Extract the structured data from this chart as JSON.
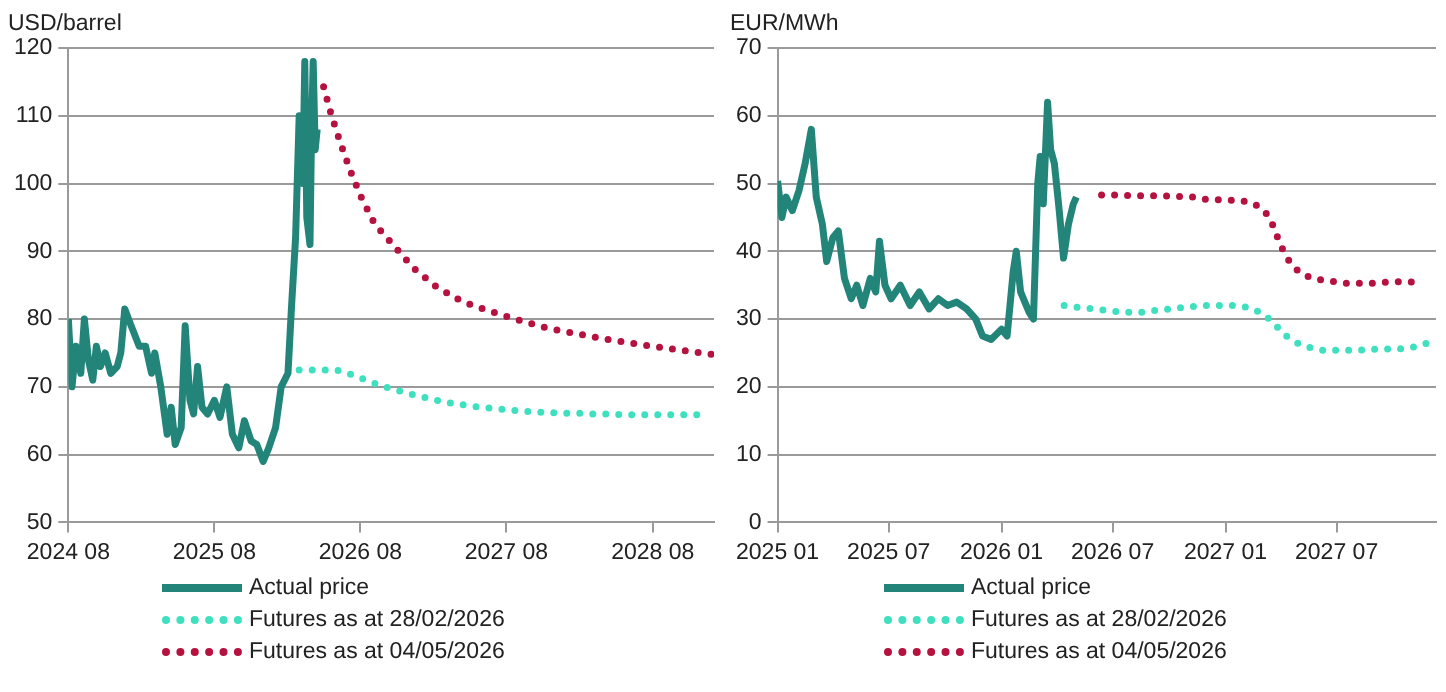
{
  "chart_data": [
    {
      "type": "line",
      "ylabel": "USD/barrel",
      "xlim": [
        "2024-08-01",
        "2029-01-01"
      ],
      "xticks": [
        {
          "value": "2024-08",
          "label": "2024 08"
        },
        {
          "value": "2025-08",
          "label": "2025 08"
        },
        {
          "value": "2026-08",
          "label": "2026 08"
        },
        {
          "value": "2027-08",
          "label": "2027 08"
        },
        {
          "value": "2028-08",
          "label": "2028 08"
        }
      ],
      "ylim": [
        50,
        120
      ],
      "yticks": [
        50,
        60,
        70,
        80,
        90,
        100,
        110,
        120
      ],
      "grid": "y",
      "legend": "bottom",
      "series": [
        {
          "name": "Actual price",
          "color": "#23857a",
          "line_style": "solid",
          "x": [
            "2024-08-01",
            "2024-08-10",
            "2024-08-20",
            "2024-09-01",
            "2024-09-10",
            "2024-09-20",
            "2024-10-01",
            "2024-10-10",
            "2024-10-20",
            "2024-11-01",
            "2024-11-15",
            "2024-12-01",
            "2024-12-10",
            "2024-12-20",
            "2025-01-05",
            "2025-01-25",
            "2025-02-10",
            "2025-02-25",
            "2025-03-05",
            "2025-03-20",
            "2025-04-05",
            "2025-04-15",
            "2025-04-25",
            "2025-05-10",
            "2025-05-20",
            "2025-06-01",
            "2025-06-10",
            "2025-06-20",
            "2025-07-01",
            "2025-07-15",
            "2025-08-01",
            "2025-08-15",
            "2025-09-01",
            "2025-09-15",
            "2025-10-01",
            "2025-10-15",
            "2025-11-01",
            "2025-11-15",
            "2025-12-01",
            "2025-12-15",
            "2026-01-01",
            "2026-01-15",
            "2026-02-01",
            "2026-02-10",
            "2026-02-20",
            "2026-03-01",
            "2026-03-10",
            "2026-03-15",
            "2026-03-20",
            "2026-03-28",
            "2026-04-01",
            "2026-04-05",
            "2026-04-10",
            "2026-04-15"
          ],
          "values": [
            80,
            70,
            76,
            72,
            80,
            74,
            71,
            76,
            73,
            75,
            72,
            73,
            75,
            81.5,
            79,
            76,
            76,
            72,
            75,
            70,
            63,
            67,
            61.5,
            64,
            79,
            68,
            66,
            73,
            67,
            66,
            68,
            65.5,
            70,
            63,
            61,
            65,
            62,
            61.5,
            59,
            61,
            64,
            70,
            72,
            82,
            92,
            110,
            100,
            118,
            95,
            91,
            108,
            118,
            105,
            108
          ]
        },
        {
          "name": "Futures as at 28/02/2026",
          "color": "#3fe0bf",
          "line_style": "dotted",
          "x": [
            "2026-03-01",
            "2026-04-15",
            "2026-06-01",
            "2026-07-10",
            "2026-08-15",
            "2026-09-20",
            "2026-10-25",
            "2026-12-01",
            "2027-01-05",
            "2027-02-10",
            "2027-03-15",
            "2027-04-20",
            "2027-05-25",
            "2027-07-01",
            "2027-08-05",
            "2027-09-10",
            "2027-10-15",
            "2027-11-20",
            "2027-12-25",
            "2028-02-01",
            "2028-03-05",
            "2028-04-10",
            "2028-05-15",
            "2028-06-20",
            "2028-07-25",
            "2028-09-01",
            "2028-10-05",
            "2028-11-10",
            "2028-12-15"
          ],
          "values": [
            72.5,
            72.5,
            72.5,
            71.8,
            71,
            70.2,
            69.6,
            69,
            68.5,
            68,
            67.6,
            67.3,
            67,
            66.8,
            66.6,
            66.4,
            66.3,
            66.2,
            66.1,
            66.1,
            66,
            66,
            65.9,
            65.9,
            65.9,
            65.9,
            65.9,
            65.9,
            65.9
          ]
        },
        {
          "name": "Futures as at 04/05/2026",
          "color": "#b5123f",
          "line_style": "dotted",
          "x": [
            "2026-05-01",
            "2026-05-21",
            "2026-06-12",
            "2026-07-06",
            "2026-08-03",
            "2026-09-06",
            "2026-10-24",
            "2026-12-12",
            "2027-02-06",
            "2027-04-12",
            "2027-06-24",
            "2027-09-03",
            "2027-11-15",
            "2028-01-27",
            "2028-04-09",
            "2028-06-24",
            "2028-09-06",
            "2028-11-18",
            "2028-12-27"
          ],
          "values": [
            114.3,
            110,
            106,
            102,
            98,
            94,
            90.8,
            87.5,
            84.8,
            82.6,
            81.1,
            79.8,
            78.6,
            77.8,
            77,
            76.3,
            75.7,
            75.1,
            74.8
          ]
        }
      ]
    },
    {
      "type": "line",
      "ylabel": "EUR/MWh",
      "xlim": [
        "2025-01-01",
        "2027-12-10"
      ],
      "xticks": [
        {
          "value": "2025-01",
          "label": "2025 01"
        },
        {
          "value": "2025-07",
          "label": "2025 07"
        },
        {
          "value": "2026-01",
          "label": "2026 01"
        },
        {
          "value": "2026-07",
          "label": "2026 07"
        },
        {
          "value": "2027-01",
          "label": "2027 01"
        },
        {
          "value": "2027-07",
          "label": "2027 07"
        }
      ],
      "ylim": [
        0,
        70
      ],
      "yticks": [
        0,
        10,
        20,
        30,
        40,
        50,
        60,
        70
      ],
      "grid": "y",
      "legend": "bottom",
      "series": [
        {
          "name": "Actual price",
          "color": "#23857a",
          "line_style": "solid",
          "x": [
            "2025-01-01",
            "2025-01-08",
            "2025-01-15",
            "2025-01-25",
            "2025-02-05",
            "2025-02-15",
            "2025-02-25",
            "2025-03-05",
            "2025-03-15",
            "2025-03-22",
            "2025-04-01",
            "2025-04-10",
            "2025-04-20",
            "2025-05-01",
            "2025-05-10",
            "2025-05-20",
            "2025-06-01",
            "2025-06-10",
            "2025-06-16",
            "2025-06-25",
            "2025-07-05",
            "2025-07-20",
            "2025-08-05",
            "2025-08-20",
            "2025-09-05",
            "2025-09-20",
            "2025-10-05",
            "2025-10-20",
            "2025-11-05",
            "2025-11-20",
            "2025-12-01",
            "2025-12-15",
            "2026-01-01",
            "2026-01-10",
            "2026-01-20",
            "2026-01-25",
            "2026-02-01",
            "2026-02-15",
            "2026-02-22",
            "2026-03-01",
            "2026-03-05",
            "2026-03-10",
            "2026-03-17",
            "2026-03-22",
            "2026-03-28",
            "2026-04-05",
            "2026-04-12",
            "2026-04-20",
            "2026-04-28",
            "2026-05-03"
          ],
          "values": [
            50.4,
            45,
            48,
            46,
            49,
            53,
            58,
            48,
            44,
            38.5,
            42,
            43,
            36,
            33,
            35,
            32,
            36,
            34,
            41.5,
            35,
            33,
            35,
            32,
            34,
            31.5,
            33,
            32,
            32.5,
            31.5,
            30,
            27.5,
            27,
            28.5,
            27.5,
            37,
            40,
            34,
            31,
            30,
            50,
            54,
            47,
            62,
            55,
            53,
            46,
            39,
            44,
            47,
            48
          ]
        },
        {
          "name": "Futures as at 28/02/2026",
          "color": "#3fe0bf",
          "line_style": "dotted",
          "x": [
            "2026-04-13",
            "2026-05-08",
            "2026-06-03",
            "2026-06-27",
            "2026-07-22",
            "2026-08-16",
            "2026-09-12",
            "2026-10-06",
            "2026-11-01",
            "2026-11-25",
            "2026-12-20",
            "2027-01-14",
            "2027-02-08",
            "2027-03-01",
            "2027-03-19",
            "2027-04-04",
            "2027-04-22",
            "2027-05-13",
            "2027-06-09",
            "2027-07-03",
            "2027-07-28",
            "2027-08-23",
            "2027-09-17",
            "2027-10-12",
            "2027-11-06",
            "2027-12-01"
          ],
          "values": [
            32,
            31.7,
            31.5,
            31.2,
            31,
            31,
            31.3,
            31.5,
            31.8,
            32,
            32,
            32,
            31.7,
            30.9,
            29.6,
            27.9,
            26.7,
            25.9,
            25.4,
            25.4,
            25.4,
            25.5,
            25.6,
            25.6,
            25.9,
            26.6
          ]
        },
        {
          "name": "Futures as at 04/05/2026",
          "color": "#b5123f",
          "line_style": "dotted",
          "x": [
            "2026-06-13",
            "2026-07-06",
            "2026-08-01",
            "2026-08-26",
            "2026-09-21",
            "2026-10-15",
            "2026-11-10",
            "2026-12-04",
            "2026-12-28",
            "2027-01-24",
            "2027-02-16",
            "2027-03-07",
            "2027-03-18",
            "2027-03-27",
            "2027-04-05",
            "2027-04-17",
            "2027-05-04",
            "2027-05-27",
            "2027-06-21",
            "2027-07-16",
            "2027-08-10",
            "2027-09-03",
            "2027-09-29",
            "2027-10-24",
            "2027-11-18"
          ],
          "values": [
            48.3,
            48.3,
            48.2,
            48.2,
            48.2,
            48.1,
            48,
            47.6,
            47.6,
            47.5,
            47.1,
            45.8,
            44.1,
            42,
            40.1,
            38.2,
            36.7,
            35.9,
            35.6,
            35.3,
            35.3,
            35.3,
            35.5,
            35.5,
            35.4
          ]
        }
      ]
    }
  ]
}
